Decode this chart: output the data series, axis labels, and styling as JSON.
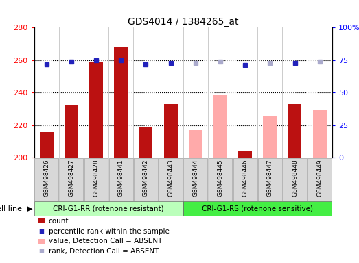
{
  "title": "GDS4014 / 1384265_at",
  "samples": [
    "GSM498426",
    "GSM498427",
    "GSM498428",
    "GSM498441",
    "GSM498442",
    "GSM498443",
    "GSM498444",
    "GSM498445",
    "GSM498446",
    "GSM498447",
    "GSM498448",
    "GSM498449"
  ],
  "group1_indices": [
    0,
    1,
    2,
    3,
    4,
    5
  ],
  "group2_indices": [
    6,
    7,
    8,
    9,
    10,
    11
  ],
  "group1_label": "CRI-G1-RR (rotenone resistant)",
  "group2_label": "CRI-G1-RS (rotenone sensitive)",
  "cell_line_label": "cell line",
  "counts": [
    216,
    232,
    259,
    268,
    219,
    233,
    null,
    null,
    204,
    null,
    233,
    null
  ],
  "absent_values": [
    null,
    null,
    null,
    null,
    null,
    null,
    217,
    239,
    null,
    226,
    null,
    229
  ],
  "ranks_present": [
    72,
    74,
    75,
    75,
    72,
    73,
    null,
    null,
    71,
    null,
    73,
    null
  ],
  "ranks_absent": [
    null,
    null,
    null,
    null,
    null,
    null,
    73,
    74,
    null,
    73,
    null,
    74
  ],
  "ylim_left": [
    200,
    280
  ],
  "ylim_right": [
    0,
    100
  ],
  "yticks_left": [
    200,
    220,
    240,
    260,
    280
  ],
  "yticks_right": [
    0,
    25,
    50,
    75,
    100
  ],
  "ytick_labels_right": [
    "0",
    "25",
    "50",
    "75",
    "100%"
  ],
  "bar_color_present": "#bb1111",
  "bar_color_absent": "#ffaaaa",
  "dot_color_present": "#2222bb",
  "dot_color_absent": "#aaaacc",
  "bg_plot": "#ffffff",
  "bg_xlabel": "#d0d0d0",
  "bg_group1": "#bbffbb",
  "bg_group2": "#44ee44",
  "bar_width": 0.55,
  "dot_size": 5,
  "grid_yticks": [
    220,
    240,
    260
  ]
}
